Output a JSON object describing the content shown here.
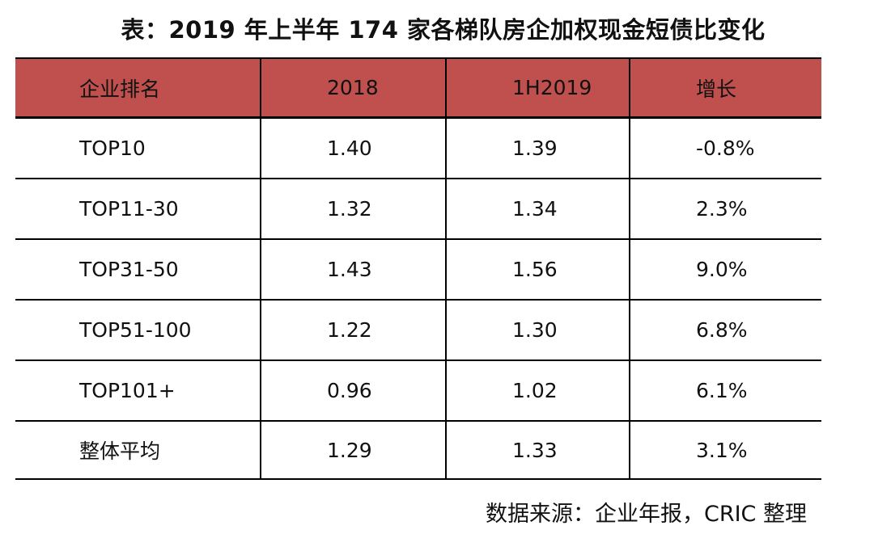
{
  "title": "表：2019 年上半年 174 家各梯队房企加权现金短债比变化",
  "table": {
    "header_color": "#c0504d",
    "columns": [
      "企业排名",
      "2018",
      "1H2019",
      "增长"
    ],
    "rows": [
      [
        "TOP10",
        "1.40",
        "1.39",
        "-0.8%"
      ],
      [
        "TOP11-30",
        "1.32",
        "1.34",
        "2.3%"
      ],
      [
        "TOP31-50",
        "1.43",
        "1.56",
        "9.0%"
      ],
      [
        "TOP51-100",
        "1.22",
        "1.30",
        "6.8%"
      ],
      [
        "TOP101+",
        "0.96",
        "1.02",
        "6.1%"
      ],
      [
        "整体平均",
        "1.29",
        "1.33",
        "3.1%"
      ]
    ]
  },
  "source": "数据来源：企业年报，CRIC 整理"
}
